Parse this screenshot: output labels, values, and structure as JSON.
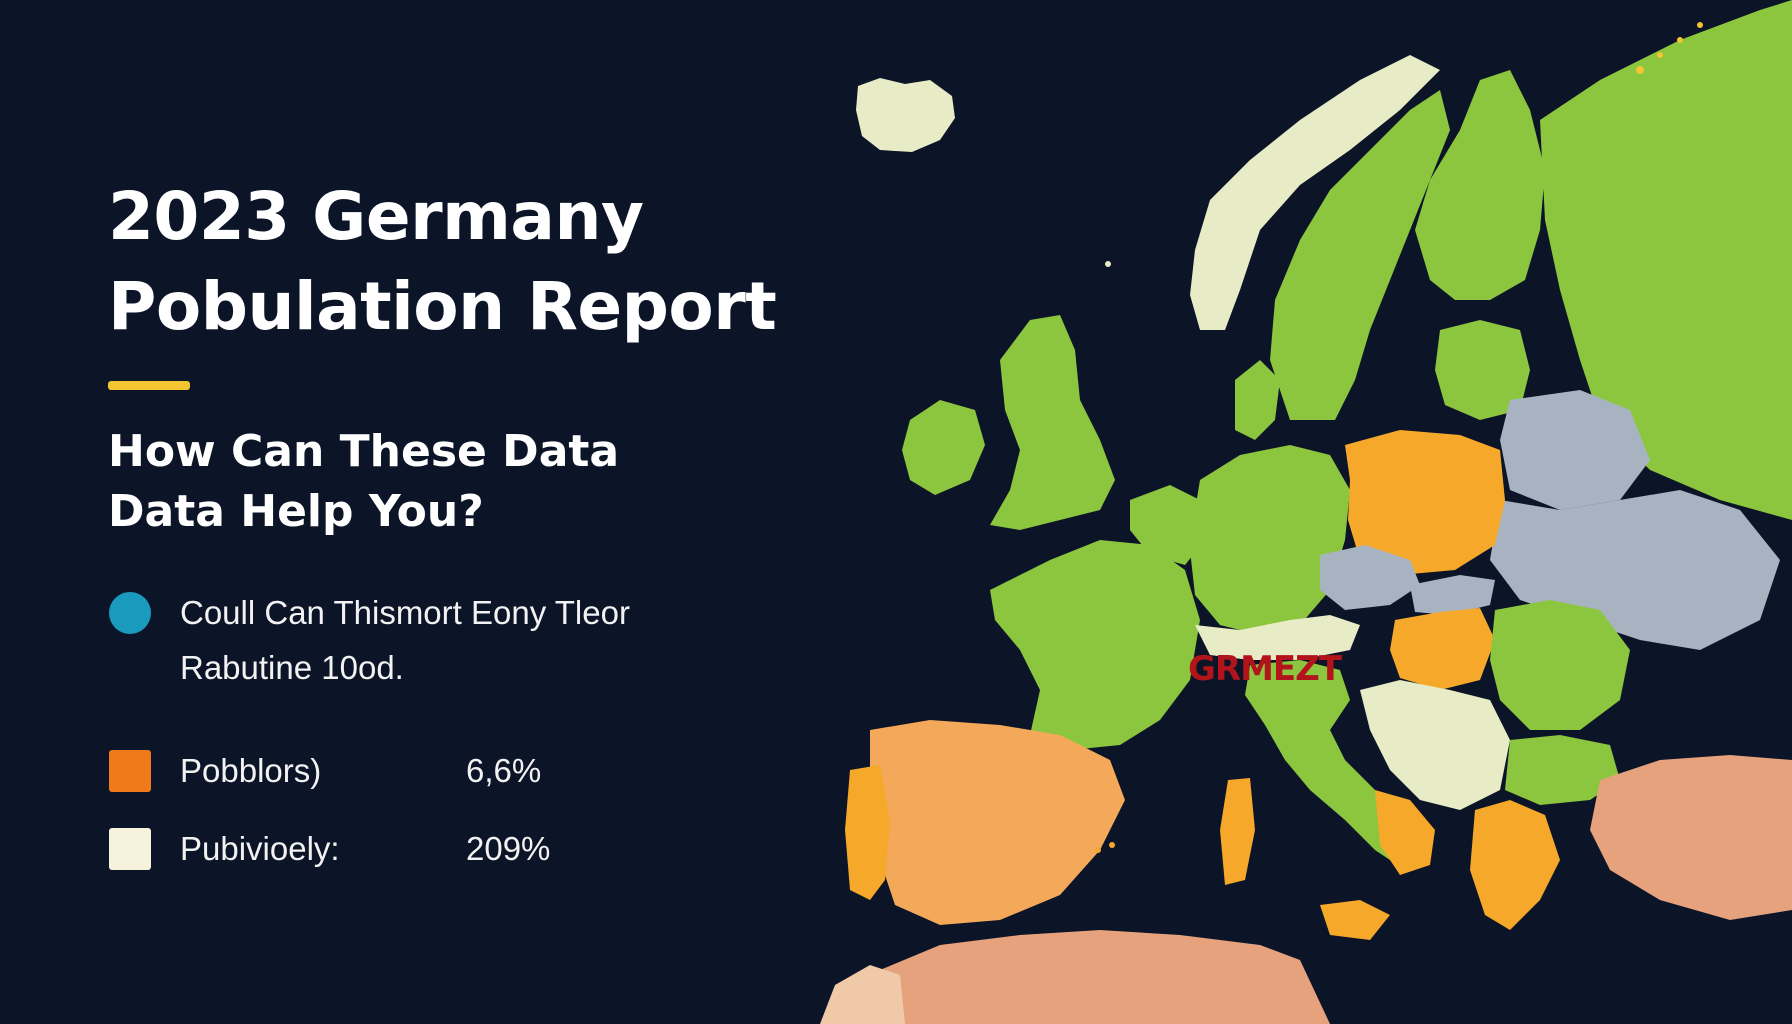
{
  "report": {
    "title_line1": "2023 Germany",
    "title_line2": "Pobulation Report",
    "subtitle_line1": "How Can These Data",
    "subtitle_line2": "Data Help You?"
  },
  "legend": {
    "item1": {
      "text_line1": "Coull Can Thismort Eony Tleor",
      "text_line2": "Rabutine 10od.",
      "color": "#1a9bbd"
    },
    "item2": {
      "label": "Pobblors)",
      "value": "6,6%",
      "color": "#ef7a1a"
    },
    "item3": {
      "label": "Pubivioely:",
      "value": "209%",
      "color": "#f7f2dc"
    }
  },
  "map": {
    "highlight_label": "GRMEZT",
    "colors": {
      "background": "#0c1428",
      "green": "#8cc63f",
      "orange": "#f5a829",
      "light_orange": "#f4a95a",
      "gray_blue": "#a8b3c2",
      "pale_cream": "#e8ecc6",
      "salmon": "#e6a27d",
      "label_red": "#b3141c",
      "accent_yellow": "#f5c531"
    }
  }
}
